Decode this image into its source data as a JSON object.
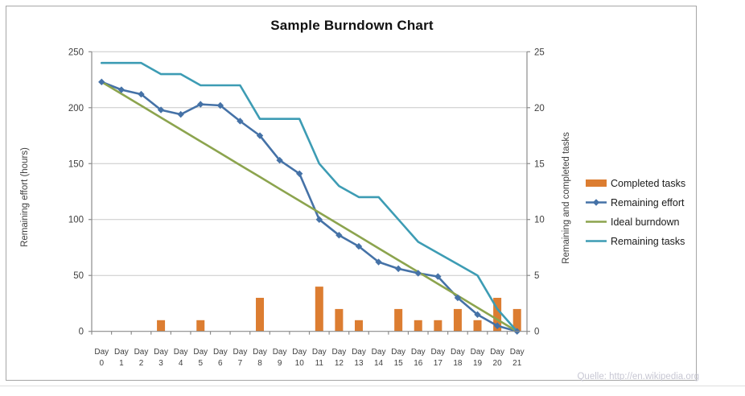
{
  "page": {
    "attribution": "Quelle: http://en.wikipedia.org"
  },
  "chart_data": {
    "type": "combo",
    "title": "Sample Burndown Chart",
    "categories": [
      "Day 0",
      "Day 1",
      "Day 2",
      "Day 3",
      "Day 4",
      "Day 5",
      "Day 6",
      "Day 7",
      "Day 8",
      "Day 9",
      "Day 10",
      "Day 11",
      "Day 12",
      "Day 13",
      "Day 14",
      "Day 15",
      "Day 16",
      "Day 17",
      "Day 18",
      "Day 19",
      "Day 20",
      "Day 21"
    ],
    "series": [
      {
        "name": "Completed tasks",
        "type": "bar",
        "axis": "right",
        "color": "#dc7d31",
        "values": [
          0,
          0,
          0,
          1,
          0,
          1,
          0,
          0,
          3,
          0,
          0,
          4,
          2,
          1,
          0,
          2,
          1,
          1,
          2,
          1,
          3,
          2
        ]
      },
      {
        "name": "Remaining effort",
        "type": "line",
        "marker": "diamond",
        "axis": "left",
        "color": "#4572a7",
        "values": [
          223,
          216,
          212,
          198,
          194,
          203,
          202,
          188,
          175,
          153,
          141,
          100,
          86,
          76,
          62,
          56,
          52,
          49,
          30,
          15,
          5,
          0
        ]
      },
      {
        "name": "Ideal burndown",
        "type": "line",
        "marker": "none",
        "axis": "left",
        "color": "#8ca44e",
        "values": [
          223,
          212.4,
          201.8,
          191.1,
          180.5,
          169.9,
          159.3,
          148.7,
          138.1,
          127.4,
          116.8,
          106.2,
          95.6,
          85.0,
          74.3,
          63.7,
          53.1,
          42.5,
          31.9,
          21.2,
          10.6,
          0
        ]
      },
      {
        "name": "Remaining tasks",
        "type": "line",
        "marker": "none",
        "axis": "right",
        "color": "#3d9cb4",
        "values": [
          24,
          24,
          24,
          23,
          23,
          22,
          22,
          22,
          19,
          19,
          19,
          15,
          13,
          12,
          12,
          10,
          8,
          7,
          6,
          5,
          2,
          0
        ]
      }
    ],
    "left_axis": {
      "label": "Remaining effort (hours)",
      "min": 0,
      "max": 250,
      "ticks": [
        0,
        50,
        100,
        150,
        200,
        250
      ]
    },
    "right_axis": {
      "label": "Remaining and  completed tasks",
      "min": 0,
      "max": 25,
      "ticks": [
        0,
        5,
        10,
        15,
        20,
        25
      ]
    },
    "x_axis": {
      "label_lines": 2
    },
    "legend_position": "right",
    "grid": "horizontal",
    "colors": {
      "gridline": "#c8c8c8",
      "axis": "#8c8c8c",
      "tick_text": "#3f3f3f",
      "frame_border": "#a6a6a6"
    }
  }
}
